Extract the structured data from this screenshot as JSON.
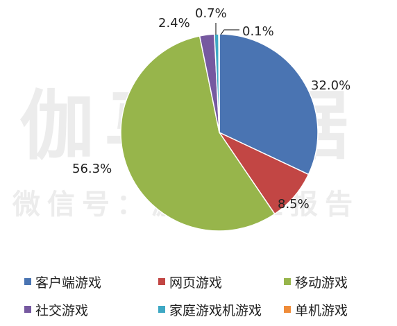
{
  "watermark": {
    "main": "伽马数据",
    "sub": "微信号：游戏产业报告"
  },
  "chart_data": {
    "type": "pie",
    "title": "",
    "series": [
      {
        "name": "客户端游戏",
        "value": 32.0,
        "label": "32.0%",
        "color": "#4a74b2"
      },
      {
        "name": "网页游戏",
        "value": 8.5,
        "label": "8.5%",
        "color": "#c24644"
      },
      {
        "name": "移动游戏",
        "value": 56.3,
        "label": "56.3%",
        "color": "#97b54b"
      },
      {
        "name": "社交游戏",
        "value": 2.4,
        "label": "2.4%",
        "color": "#7659a0"
      },
      {
        "name": "家庭游戏机游戏",
        "value": 0.7,
        "label": "0.7%",
        "color": "#3ea8c4"
      },
      {
        "name": "单机游戏",
        "value": 0.1,
        "label": "0.1%",
        "color": "#ef8c39"
      }
    ],
    "legend_position": "bottom"
  }
}
